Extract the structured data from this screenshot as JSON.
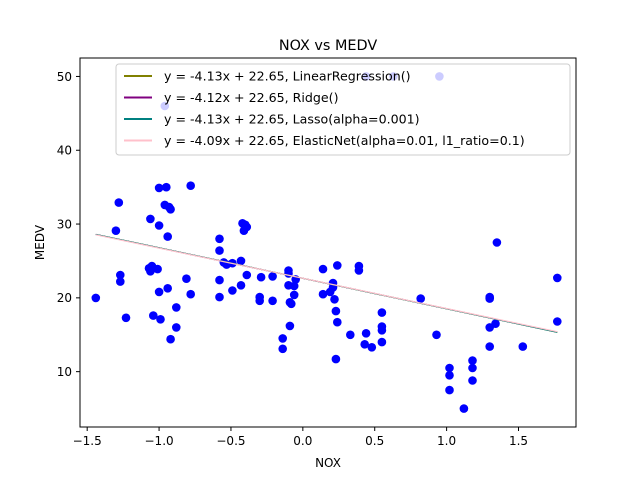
{
  "chart_data": {
    "type": "scatter",
    "title": "NOX vs MEDV",
    "xlabel": "NOX",
    "ylabel": "MEDV",
    "xlim": [
      -1.55,
      1.9
    ],
    "ylim": [
      2.5,
      52.5
    ],
    "xticks": [
      -1.5,
      -1.0,
      -0.5,
      0.0,
      0.5,
      1.0,
      1.5
    ],
    "xtick_labels": [
      "−1.5",
      "−1.0",
      "−0.5",
      "0.0",
      "0.5",
      "1.0",
      "1.5"
    ],
    "yticks": [
      10,
      20,
      30,
      40,
      50
    ],
    "ytick_labels": [
      "10",
      "20",
      "30",
      "40",
      "50"
    ],
    "grid": false,
    "legend_position": "top-right",
    "point_color": "#0000ff",
    "points": [
      [
        -1.44,
        20.0
      ],
      [
        -1.3,
        29.1
      ],
      [
        -1.28,
        32.9
      ],
      [
        -1.27,
        23.1
      ],
      [
        -1.27,
        22.2
      ],
      [
        -1.23,
        17.3
      ],
      [
        -1.07,
        24.0
      ],
      [
        -1.06,
        23.6
      ],
      [
        -1.06,
        30.7
      ],
      [
        -1.05,
        24.3
      ],
      [
        -1.04,
        17.6
      ],
      [
        -1.01,
        23.9
      ],
      [
        -1.0,
        29.8
      ],
      [
        -1.0,
        34.9
      ],
      [
        -1.0,
        20.8
      ],
      [
        -0.99,
        17.1
      ],
      [
        -0.96,
        32.6
      ],
      [
        -0.95,
        35.0
      ],
      [
        -0.94,
        28.3
      ],
      [
        -0.94,
        21.3
      ],
      [
        -0.93,
        32.3
      ],
      [
        -0.92,
        32.0
      ],
      [
        -0.92,
        14.4
      ],
      [
        -0.88,
        18.7
      ],
      [
        -0.88,
        16.0
      ],
      [
        -0.81,
        22.6
      ],
      [
        -0.78,
        35.2
      ],
      [
        -0.78,
        20.5
      ],
      [
        -0.58,
        26.4
      ],
      [
        -0.58,
        28.0
      ],
      [
        -0.58,
        22.4
      ],
      [
        -0.58,
        20.1
      ],
      [
        -0.55,
        24.8
      ],
      [
        -0.53,
        24.5
      ],
      [
        -0.49,
        24.7
      ],
      [
        -0.49,
        21.0
      ],
      [
        -0.43,
        25.0
      ],
      [
        -0.43,
        21.7
      ],
      [
        -0.42,
        30.1
      ],
      [
        -0.41,
        29.1
      ],
      [
        -0.4,
        29.9
      ],
      [
        -0.39,
        29.6
      ],
      [
        -0.39,
        23.1
      ],
      [
        -0.3,
        19.6
      ],
      [
        -0.3,
        20.1
      ],
      [
        -0.29,
        22.8
      ],
      [
        -0.21,
        19.6
      ],
      [
        -0.21,
        22.9
      ],
      [
        -0.14,
        14.5
      ],
      [
        -0.14,
        13.1
      ],
      [
        -0.1,
        23.7
      ],
      [
        -0.1,
        23.3
      ],
      [
        -0.1,
        21.7
      ],
      [
        -0.09,
        16.2
      ],
      [
        -0.09,
        19.4
      ],
      [
        -0.08,
        19.2
      ],
      [
        -0.06,
        21.6
      ],
      [
        -0.06,
        20.4
      ],
      [
        -0.05,
        22.5
      ],
      [
        0.14,
        23.9
      ],
      [
        0.14,
        20.5
      ],
      [
        0.19,
        20.8
      ],
      [
        0.21,
        22.0
      ],
      [
        0.21,
        21.4
      ],
      [
        0.22,
        19.8
      ],
      [
        0.23,
        18.2
      ],
      [
        0.23,
        11.7
      ],
      [
        0.24,
        24.4
      ],
      [
        0.24,
        16.7
      ],
      [
        0.33,
        15.0
      ],
      [
        0.39,
        24.3
      ],
      [
        0.39,
        23.7
      ],
      [
        0.43,
        13.7
      ],
      [
        0.44,
        15.2
      ],
      [
        0.48,
        13.3
      ],
      [
        0.55,
        18.0
      ],
      [
        0.55,
        16.1
      ],
      [
        0.55,
        15.6
      ],
      [
        0.55,
        14.0
      ],
      [
        0.82,
        19.9
      ],
      [
        0.93,
        15.0
      ],
      [
        1.02,
        10.5
      ],
      [
        1.02,
        9.5
      ],
      [
        1.02,
        7.5
      ],
      [
        1.12,
        5.0
      ],
      [
        1.18,
        11.5
      ],
      [
        1.18,
        10.5
      ],
      [
        1.18,
        8.8
      ],
      [
        1.3,
        20.1
      ],
      [
        1.3,
        19.9
      ],
      [
        1.3,
        16.0
      ],
      [
        1.3,
        13.4
      ],
      [
        1.34,
        16.5
      ],
      [
        1.35,
        27.5
      ],
      [
        1.53,
        13.4
      ],
      [
        1.77,
        22.7
      ],
      [
        1.77,
        16.8
      ],
      [
        -0.96,
        46.0
      ],
      [
        0.44,
        50.0
      ],
      [
        0.63,
        50.0
      ],
      [
        0.95,
        50.0
      ]
    ],
    "series": [
      {
        "name": "y = -4.13x + 22.65, LinearRegression()",
        "slope": -4.13,
        "intercept": 22.65,
        "color": "#808000"
      },
      {
        "name": "y = -4.12x + 22.65, Ridge()",
        "slope": -4.12,
        "intercept": 22.65,
        "color": "#800080"
      },
      {
        "name": "y = -4.13x + 22.65, Lasso(alpha=0.001)",
        "slope": -4.13,
        "intercept": 22.65,
        "color": "#008080"
      },
      {
        "name": "y = -4.09x + 22.65, ElasticNet(alpha=0.01, l1_ratio=0.1)",
        "slope": -4.09,
        "intercept": 22.65,
        "color": "#ffc0cb"
      }
    ],
    "line_x_range": [
      -1.44,
      1.77
    ]
  }
}
